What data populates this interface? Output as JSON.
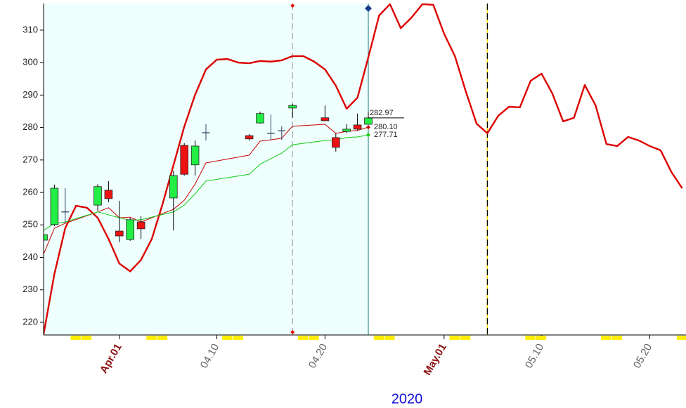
{
  "chart_data": {
    "type": "candlestick",
    "xlim": [
      -6,
      53.35
    ],
    "ylim": [
      216.1,
      318.2
    ],
    "yticks": [
      220,
      230,
      240,
      250,
      260,
      270,
      280,
      290,
      300,
      310
    ],
    "xticks": [
      {
        "value": 1,
        "label": "Apr.01"
      },
      {
        "value": 10,
        "label": "04.10"
      },
      {
        "value": 20,
        "label": "04.20"
      },
      {
        "value": 31,
        "label": "May.01"
      },
      {
        "value": 40,
        "label": "05.10"
      },
      {
        "value": 50,
        "label": "05.20"
      }
    ],
    "xtick_colors": [
      "#8b1010",
      "#666666",
      "#666666",
      "#8b1010",
      "#666666",
      "#666666"
    ],
    "x_title": "2020",
    "shade": {
      "until": 24,
      "color": "#eefffe"
    },
    "highlight_days": [
      -3,
      -2,
      4,
      5,
      11,
      12,
      18,
      19,
      25,
      26,
      32,
      33,
      39,
      40,
      46,
      47,
      53
    ],
    "highlight_color": "#ffee00",
    "vlines": [
      {
        "x": 17,
        "color": "#aaaaaa",
        "dash": true,
        "marker_color": "#ee0000",
        "markers": "both"
      },
      {
        "x": 24,
        "color": "#117777",
        "dash": false,
        "marker_color": "#1a3c8c",
        "markers": "top"
      },
      {
        "x": 35,
        "color": "#000000",
        "dash": true,
        "under_color": "#ffdd00"
      }
    ],
    "candles": {
      "x": [
        -6,
        -5,
        -4,
        -1,
        0,
        1,
        2,
        3,
        6,
        7,
        8,
        9,
        13,
        14,
        15,
        16,
        17,
        20,
        21,
        22,
        23,
        24
      ],
      "open": [
        245.3,
        250.1,
        254,
        256.1,
        260.7,
        248.1,
        245.5,
        250.9,
        258.3,
        274.5,
        268.5,
        278.4,
        277.5,
        281.4,
        278.2,
        279,
        286,
        283,
        276.9,
        278.8,
        280.8,
        281
      ],
      "high": [
        248,
        262.4,
        261.3,
        262.5,
        263.5,
        257.4,
        252.2,
        252.7,
        266.7,
        275.2,
        276,
        281,
        278,
        284.9,
        284,
        280.4,
        287.3,
        286.8,
        278.2,
        281,
        284.3,
        284.7
      ],
      "low": [
        244,
        249.6,
        250.5,
        254.4,
        257,
        244.7,
        245.1,
        245.7,
        248.3,
        265.2,
        265.2,
        276,
        276,
        281.2,
        276,
        276.2,
        283,
        282,
        272.6,
        278.2,
        279.1,
        281
      ],
      "close": [
        247,
        261.3,
        254,
        261.8,
        258.1,
        246.6,
        251.6,
        248.8,
        265.2,
        265.6,
        274.3,
        278.4,
        276.5,
        284.3,
        278.2,
        279,
        286.8,
        282.1,
        273.9,
        279.5,
        279.5,
        282.97
      ],
      "up_color": "#22ee44",
      "down_color": "#ee1111",
      "doji_color": "#334466"
    },
    "lines": [
      {
        "color": "#dd0000",
        "thick": true,
        "x": [
          -6,
          -5,
          -4,
          -3,
          -2,
          -1,
          0,
          1,
          2,
          3,
          4,
          5,
          6,
          7,
          8,
          9,
          10,
          11,
          12,
          13,
          14,
          15,
          16,
          17,
          18,
          19,
          20,
          21,
          22,
          23,
          24,
          25,
          26,
          27,
          28,
          29,
          30,
          31,
          32,
          33,
          34,
          35,
          36,
          37,
          38,
          39,
          40,
          41,
          42,
          43,
          44,
          45,
          46,
          47,
          48,
          49,
          50,
          51,
          52,
          53
        ],
        "values": [
          216.3,
          234.9,
          249.0,
          255.9,
          255.3,
          252.2,
          245.7,
          238.1,
          235.7,
          239.2,
          245.7,
          256.5,
          268.4,
          280.3,
          290.1,
          297.9,
          300.9,
          301.1,
          300.0,
          299.8,
          300.5,
          300.3,
          300.7,
          302.0,
          302.0,
          300.3,
          297.9,
          292.9,
          285.8,
          289.2,
          301.6,
          314.5,
          318.0,
          310.6,
          313.9,
          318.0,
          317.8,
          308.9,
          302.0,
          291.2,
          281.2,
          278.2,
          283.6,
          286.4,
          286.2,
          294.4,
          296.6,
          290.5,
          281.9,
          283.0,
          293.1,
          286.8,
          274.9,
          274.3,
          277.1,
          276.0,
          274.3,
          273.0,
          266.3,
          261.3
        ]
      },
      {
        "color": "#cc0000",
        "thick": false,
        "x": [
          -6,
          -5,
          -4,
          -1,
          0,
          1,
          2,
          3,
          6,
          7,
          8,
          9,
          13,
          14,
          15,
          16,
          17,
          20,
          21,
          22,
          23,
          24
        ],
        "values": [
          241,
          249,
          250.5,
          254,
          255.3,
          252.2,
          252.4,
          250.9,
          254.8,
          257.6,
          262.6,
          269.1,
          271.5,
          275.8,
          276.2,
          276.7,
          280.4,
          281,
          278.2,
          278.8,
          279.1,
          280.1
        ],
        "end_label": "280.10"
      },
      {
        "color": "#11cc11",
        "thick": false,
        "x": [
          -6,
          -5,
          -4,
          -1,
          0,
          1,
          2,
          3,
          6,
          7,
          8,
          9,
          13,
          14,
          15,
          16,
          17,
          20,
          21,
          22,
          23,
          24
        ],
        "values": [
          248.3,
          250.5,
          250.9,
          254,
          253.1,
          252.2,
          251.4,
          251.6,
          254,
          256.1,
          259.6,
          263.5,
          265.6,
          268.7,
          270.4,
          272.1,
          274.7,
          276,
          276.2,
          276.9,
          277.1,
          277.71
        ],
        "end_label": "277.71"
      }
    ]
  }
}
